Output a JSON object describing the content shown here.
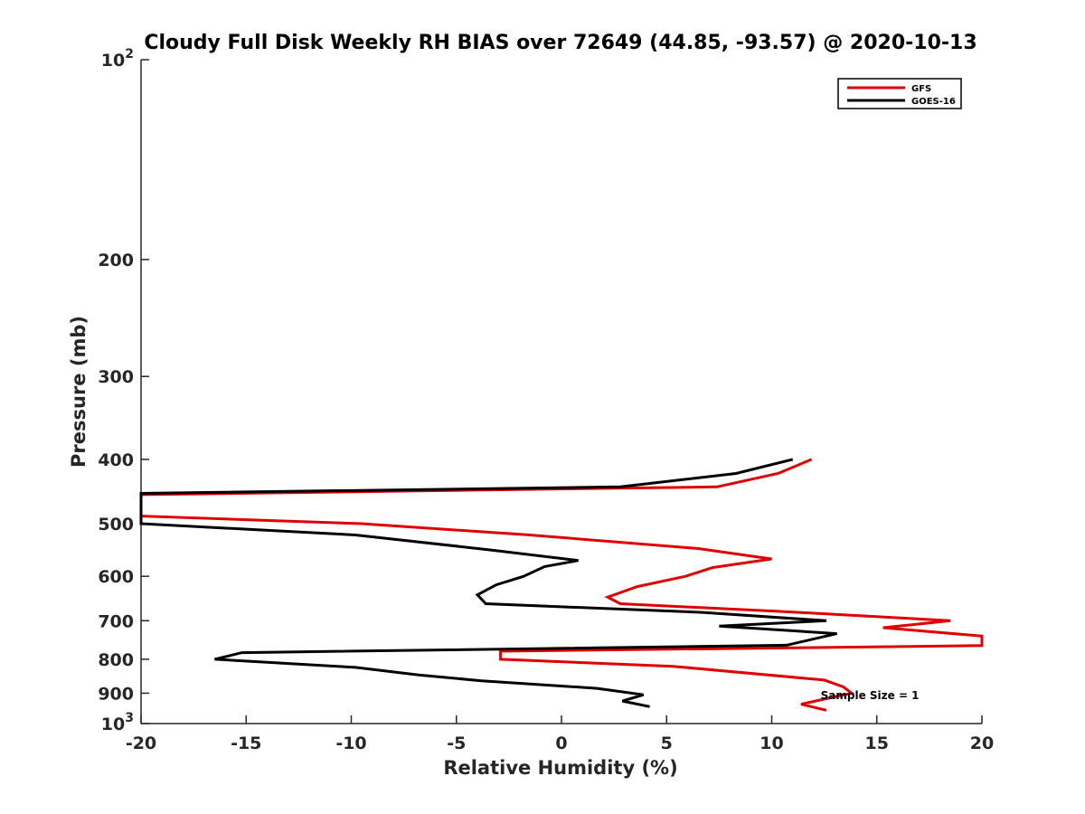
{
  "chart_data": {
    "type": "line",
    "title": "Cloudy Full Disk Weekly RH BIAS over 72649 (44.85, -93.57) @ 2020-10-13",
    "xlabel": "Relative Humidity (%)",
    "ylabel": "Pressure (mb)",
    "xlim": [
      -20,
      20
    ],
    "ylim": [
      100,
      1000
    ],
    "yscale": "log",
    "y_reversed": true,
    "grid": false,
    "legend_position": "top-right",
    "xticks": [
      -20,
      -15,
      -10,
      -5,
      0,
      5,
      10,
      15,
      20
    ],
    "xtick_labels": [
      "-20",
      "-15",
      "-10",
      "-5",
      "0",
      "5",
      "10",
      "15",
      "20"
    ],
    "yticks": [
      {
        "value": 100,
        "label": "10",
        "sup": "2"
      },
      {
        "value": 200,
        "label": "200",
        "sup": ""
      },
      {
        "value": 300,
        "label": "300",
        "sup": ""
      },
      {
        "value": 400,
        "label": "400",
        "sup": ""
      },
      {
        "value": 500,
        "label": "500",
        "sup": ""
      },
      {
        "value": 600,
        "label": "600",
        "sup": ""
      },
      {
        "value": 700,
        "label": "700",
        "sup": ""
      },
      {
        "value": 800,
        "label": "800",
        "sup": ""
      },
      {
        "value": 900,
        "label": "900",
        "sup": ""
      },
      {
        "value": 1000,
        "label": "10",
        "sup": "3"
      }
    ],
    "series": [
      {
        "name": "GFS",
        "color": "#e00000",
        "points": [
          [
            11.9,
            400
          ],
          [
            10.3,
            420
          ],
          [
            7.4,
            440
          ],
          [
            -20,
            452
          ],
          [
            -20,
            487
          ],
          [
            -9.5,
            500
          ],
          [
            -1.5,
            520
          ],
          [
            6.5,
            545
          ],
          [
            10.0,
            565
          ],
          [
            7.2,
            582
          ],
          [
            5.9,
            600
          ],
          [
            3.6,
            622
          ],
          [
            2.2,
            645
          ],
          [
            2.8,
            660
          ],
          [
            10.5,
            678
          ],
          [
            18.5,
            700
          ],
          [
            15.3,
            717
          ],
          [
            20,
            738
          ],
          [
            20,
            763
          ],
          [
            -2.9,
            778
          ],
          [
            -2.9,
            800
          ],
          [
            5.3,
            820
          ],
          [
            12.5,
            860
          ],
          [
            13.4,
            880
          ],
          [
            13.8,
            900
          ],
          [
            11.4,
            935
          ],
          [
            12.6,
            955
          ]
        ]
      },
      {
        "name": "GOES-16",
        "color": "#000000",
        "points": [
          [
            11.0,
            400
          ],
          [
            8.3,
            420
          ],
          [
            2.8,
            440
          ],
          [
            -20,
            450
          ],
          [
            -20,
            500
          ],
          [
            -9.8,
            520
          ],
          [
            -3.5,
            547
          ],
          [
            0.8,
            568
          ],
          [
            -0.8,
            580
          ],
          [
            -1.8,
            600
          ],
          [
            -3.1,
            618
          ],
          [
            -4.0,
            640
          ],
          [
            -3.6,
            660
          ],
          [
            6.7,
            680
          ],
          [
            12.6,
            700
          ],
          [
            7.5,
            713
          ],
          [
            13.1,
            732
          ],
          [
            10.7,
            762
          ],
          [
            -15.2,
            782
          ],
          [
            -16.5,
            800
          ],
          [
            -9.8,
            823
          ],
          [
            -6.8,
            845
          ],
          [
            -3.8,
            862
          ],
          [
            1.7,
            885
          ],
          [
            3.9,
            905
          ],
          [
            2.9,
            925
          ],
          [
            4.2,
            943
          ]
        ]
      }
    ],
    "legend": [
      {
        "name": "GFS",
        "color": "#e00000"
      },
      {
        "name": "GOES-16",
        "color": "#000000"
      }
    ],
    "annotations": [
      {
        "text": "Sample Size = 1",
        "x": 12.5,
        "y": 905
      }
    ]
  }
}
